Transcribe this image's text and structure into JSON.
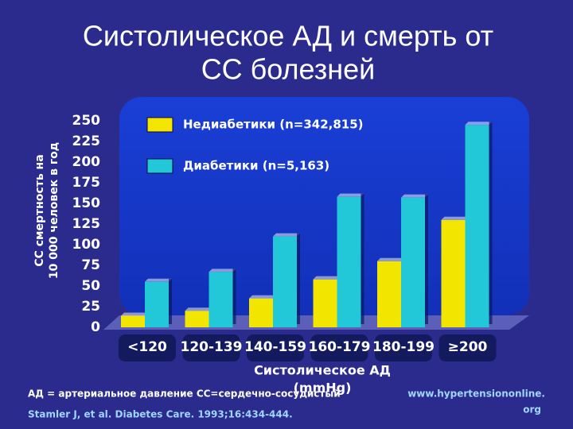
{
  "chart_data": {
    "type": "bar",
    "title": "Систолическое АД и смерть от",
    "title_line2": "СС болезней",
    "y_label_line1": "СС смертность на",
    "y_label_line2": "10 000 человек в год",
    "x_label_line1": "Систолическое АД",
    "x_label_line2": "(mmHg)",
    "categories": [
      "<120",
      "120-139",
      "140-159",
      "160-179",
      "180-199",
      "≥200"
    ],
    "series": [
      {
        "name": "Недиабетики (n=342,815)",
        "color": "#f2e600",
        "values": [
          14,
          20,
          35,
          58,
          80,
          130
        ]
      },
      {
        "name": "Диабетики (n=5,163)",
        "color": "#22c8d8",
        "values": [
          55,
          67,
          110,
          158,
          157,
          245
        ]
      }
    ],
    "ylim": [
      0,
      250
    ],
    "yticks": [
      0,
      25,
      50,
      75,
      100,
      125,
      150,
      175,
      200,
      225,
      250
    ],
    "footnote": "АД = артериальное давление СС=сердечно-сосудистый",
    "source": "Stamler J, et al. Diabetes Care. 1993;16:434-444.",
    "website_line1": "www.hypertensiononline.",
    "website_line2": "org"
  }
}
